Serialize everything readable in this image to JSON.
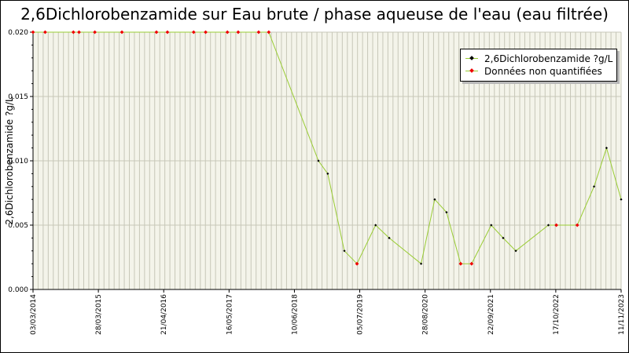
{
  "chart_data": {
    "type": "line",
    "title": "2,6Dichlorobenzamide sur Eau brute / phase aqueuse de l'eau (eau filtrée)",
    "ylabel": "2,6Dichlorobenzamide ?g/L",
    "xlabel": "",
    "ylim": [
      0,
      0.02
    ],
    "y_ticks": [
      "0.000",
      "0.005",
      "0.010",
      "0.015",
      "0.020"
    ],
    "x_tick_labels": [
      "03/03/2014",
      "28/03/2015",
      "21/04/2016",
      "16/05/2017",
      "10/06/2018",
      "05/07/2019",
      "28/08/2020",
      "22/09/2021",
      "17/10/2022",
      "11/11/2023"
    ],
    "grid": true,
    "legend_position": "top-right",
    "colors": {
      "line": "#99cc33",
      "point": "#000000",
      "unquantified": "#ee0000"
    },
    "series": [
      {
        "name": "2,6Dichlorobenzamide ?g/L",
        "x": [
          "2014-03-03",
          "2014-05-15",
          "2014-11-01",
          "2014-12-05",
          "2015-03-10",
          "2015-08-20",
          "2016-03-15",
          "2016-05-20",
          "2016-10-25",
          "2017-01-05",
          "2017-05-16",
          "2017-07-20",
          "2017-11-20",
          "2018-01-20",
          "2018-11-15",
          "2019-01-10",
          "2019-04-20",
          "2019-07-05",
          "2019-10-25",
          "2020-01-15",
          "2020-07-25",
          "2020-10-15",
          "2020-12-25",
          "2021-03-20",
          "2021-05-25",
          "2021-09-20",
          "2021-12-01",
          "2022-02-15",
          "2022-08-30",
          "2022-10-17",
          "2023-02-20",
          "2023-06-01",
          "2023-08-15",
          "2023-11-11"
        ],
        "y": [
          0.02,
          0.02,
          0.02,
          0.02,
          0.02,
          0.02,
          0.02,
          0.02,
          0.02,
          0.02,
          0.02,
          0.02,
          0.02,
          0.02,
          0.01,
          0.009,
          0.003,
          0.002,
          0.005,
          0.004,
          0.002,
          0.007,
          0.006,
          0.002,
          0.002,
          0.005,
          0.004,
          0.003,
          0.005,
          0.005,
          0.005,
          0.008,
          0.011,
          0.007
        ],
        "quantified": [
          false,
          false,
          false,
          false,
          false,
          false,
          false,
          false,
          false,
          false,
          false,
          false,
          false,
          false,
          true,
          true,
          true,
          false,
          true,
          true,
          true,
          true,
          true,
          false,
          false,
          true,
          true,
          true,
          true,
          false,
          false,
          true,
          true,
          true
        ]
      }
    ],
    "legend": [
      {
        "label": "2,6Dichlorobenzamide ?g/L",
        "kind": "quantified"
      },
      {
        "label": "Données non quantifiées",
        "kind": "unquantified"
      }
    ]
  }
}
